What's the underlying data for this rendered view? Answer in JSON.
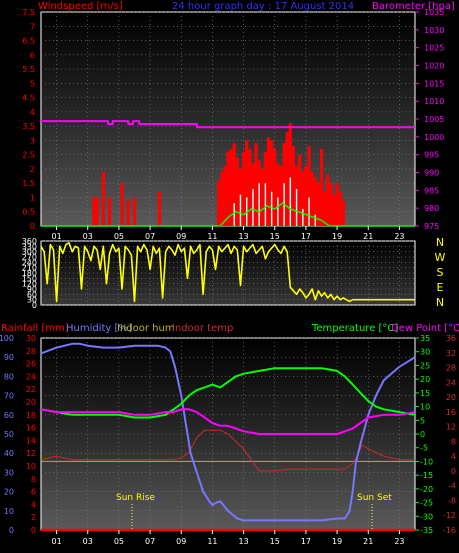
{
  "header": {
    "wind_title": "Windspeed [m/s]",
    "center_title": "24 hour graph day : 17 August 2014",
    "baro_title": "Barometer [hpa]"
  },
  "bottom_header": {
    "rain_title": "Rainfall [mm]",
    "humidity_title": "Humidity [%]",
    "indoor_hum_title": "Indoor hum",
    "indoor_temp_title": "Indoor temp",
    "temp_title": "Temperature [°C]",
    "dew_title": "Dew Point [°C]"
  },
  "annotations": {
    "sun_rise": "Sun Rise",
    "sun_set": "Sun Set"
  },
  "colors": {
    "wind": "#ff0000",
    "gust": "#ffffff",
    "avg": "#00ff00",
    "baro": "#ff00ff",
    "direction": "#ffff00",
    "rain": "#ff0000",
    "humidity": "#7777ff",
    "indoor_hum": "#b9b900",
    "indoor_temp": "#d12a2a",
    "temperature": "#00ff00",
    "dewpoint": "#ff00ff",
    "title_blue": "#3030ff",
    "title_red": "#ff0000",
    "title_magenta": "#ff00ff",
    "title_green": "#00ff00",
    "title_yellow": "#ffff00"
  },
  "chart_data": [
    {
      "type": "bar",
      "yaxis_left": {
        "ticks": [
          "0",
          "0.5",
          "1",
          "1.5",
          "2",
          "2.5",
          "3",
          "3.5",
          "4",
          "4.5",
          "5",
          "5.5",
          "6",
          "6.5",
          "7",
          "7.5"
        ],
        "ylim": [
          0,
          7.5
        ]
      },
      "yaxis_right": {
        "ticks": [
          "975",
          "980",
          "985",
          "990",
          "995",
          "1000",
          "1005",
          "1010",
          "1015",
          "1020",
          "1025",
          "1030",
          "1035"
        ],
        "ylim": [
          975,
          1035
        ]
      },
      "x_ticks": [
        "01",
        "03",
        "05",
        "07",
        "09",
        "11",
        "13",
        "15",
        "17",
        "19",
        "21",
        "23"
      ],
      "xlim": [
        0,
        24
      ],
      "grid": true,
      "series": [
        {
          "x": [
            3.4,
            3.6,
            4.0,
            4.4,
            5.2,
            5.6,
            6.0,
            7.6,
            11.4,
            11.6,
            11.8,
            12.0,
            12.2,
            12.4,
            12.6,
            12.8,
            13.0,
            13.2,
            13.4,
            13.6,
            13.8,
            14.0,
            14.2,
            14.4,
            14.6,
            14.8,
            15.0,
            15.2,
            15.4,
            15.6,
            15.8,
            16.0,
            16.2,
            16.4,
            16.6,
            16.8,
            17.0,
            17.2,
            17.4,
            17.6,
            17.8,
            18.0,
            18.2,
            18.4,
            18.6,
            18.8,
            19.0,
            19.2,
            19.4
          ],
          "values": [
            1.0,
            1.0,
            1.9,
            1.0,
            1.5,
            0.9,
            1.0,
            1.2,
            1.6,
            1.9,
            2.1,
            2.6,
            2.7,
            2.9,
            2.4,
            2.0,
            2.6,
            3.0,
            2.7,
            2.2,
            2.9,
            2.3,
            2.0,
            2.6,
            3.1,
            3.0,
            2.7,
            2.2,
            2.1,
            2.9,
            3.3,
            3.6,
            2.8,
            2.1,
            2.5,
            1.9,
            2.1,
            2.8,
            1.9,
            1.7,
            1.5,
            2.7,
            1.2,
            1.8,
            1.5,
            1.1,
            1.5,
            1.2,
            0.9
          ]
        },
        {
          "x": [
            12.4,
            12.8,
            13.2,
            13.6,
            14.0,
            14.4,
            14.8,
            15.2,
            15.6,
            16.0,
            16.4,
            16.8,
            17.2,
            17.6
          ],
          "values": [
            0.8,
            1.1,
            1.0,
            1.3,
            1.5,
            1.5,
            1.2,
            1.0,
            1.5,
            1.7,
            1.3,
            0.6,
            1.0,
            0.4
          ]
        },
        {
          "x": [
            0,
            11.5,
            12.0,
            12.5,
            13.0,
            13.5,
            14.0,
            14.5,
            15.0,
            15.5,
            16.0,
            16.5,
            17.0,
            17.5,
            18.0,
            18.5,
            24
          ],
          "values": [
            0,
            0,
            0.3,
            0.5,
            0.4,
            0.6,
            0.5,
            0.7,
            0.6,
            0.8,
            0.6,
            0.5,
            0.4,
            0.3,
            0.2,
            0,
            0
          ]
        },
        {
          "x": [
            0,
            4.3,
            4.3,
            4.6,
            4.6,
            5.6,
            5.6,
            5.9,
            5.9,
            6.3,
            6.3,
            10.0,
            10.0,
            24
          ],
          "values": [
            1004.4,
            1004.4,
            1003.6,
            1003.6,
            1004.4,
            1004.4,
            1003.6,
            1003.6,
            1004.4,
            1004.4,
            1003.6,
            1003.6,
            1002.7,
            1002.7
          ]
        }
      ]
    },
    {
      "type": "line",
      "yaxis_left": {
        "ticks": [
          "0",
          "30",
          "60",
          "90",
          "120",
          "150",
          "180",
          "210",
          "240",
          "270",
          "300",
          "330",
          "360"
        ],
        "ylim": [
          0,
          360
        ]
      },
      "yaxis_right": {
        "ticks": [
          "N",
          "W",
          "S",
          "E",
          "N"
        ]
      },
      "xlim": [
        0,
        24
      ],
      "grid": true,
      "series": [
        {
          "x": [
            0.0,
            0.2,
            0.4,
            0.6,
            0.8,
            1.0,
            1.2,
            1.4,
            1.6,
            1.8,
            2.0,
            2.2,
            2.4,
            2.6,
            2.8,
            3.0,
            3.2,
            3.4,
            3.6,
            3.8,
            4.0,
            4.2,
            4.4,
            4.6,
            4.8,
            5.0,
            5.2,
            5.4,
            5.6,
            5.8,
            6.0,
            6.2,
            6.4,
            6.6,
            6.8,
            7.0,
            7.2,
            7.4,
            7.6,
            7.8,
            8.0,
            8.2,
            8.4,
            8.6,
            8.8,
            9.0,
            9.2,
            9.4,
            9.6,
            9.8,
            10.0,
            10.2,
            10.4,
            10.6,
            10.8,
            11.0,
            11.2,
            11.4,
            11.6,
            11.8,
            12.0,
            12.2,
            12.4,
            12.6,
            12.8,
            13.0,
            13.2,
            13.4,
            13.6,
            13.8,
            14.0,
            14.2,
            14.4,
            14.6,
            14.8,
            15.0,
            15.2,
            15.4,
            15.6,
            15.8,
            16.0,
            16.2,
            16.4,
            16.6,
            16.8,
            17.0,
            17.2,
            17.4,
            17.6,
            17.8,
            18.0,
            18.2,
            18.4,
            18.6,
            18.8,
            19.0,
            19.2,
            19.4,
            19.6,
            19.8,
            20.0,
            20.2,
            20.4,
            20.6,
            20.8,
            21.0,
            21.2,
            21.4,
            21.6,
            21.8,
            22.0,
            22.2,
            22.4,
            22.6,
            22.8,
            23.0,
            23.2,
            23.4,
            23.6,
            23.8,
            24.0
          ],
          "values": [
            330,
            300,
            120,
            340,
            310,
            20,
            330,
            290,
            340,
            350,
            300,
            330,
            320,
            90,
            330,
            300,
            250,
            330,
            310,
            200,
            330,
            120,
            290,
            340,
            300,
            320,
            90,
            330,
            310,
            280,
            20,
            330,
            300,
            340,
            310,
            200,
            330,
            290,
            320,
            40,
            300,
            330,
            310,
            280,
            340,
            300,
            320,
            150,
            330,
            290,
            310,
            340,
            60,
            300,
            330,
            310,
            200,
            330,
            300,
            320,
            340,
            290,
            330,
            310,
            110,
            330,
            300,
            320,
            340,
            290,
            310,
            330,
            260,
            300,
            320,
            340,
            310,
            290,
            330,
            300,
            100,
            80,
            60,
            90,
            70,
            40,
            60,
            90,
            30,
            80,
            50,
            70,
            40,
            60,
            30,
            50,
            30,
            40,
            30,
            20,
            30,
            30,
            30,
            30,
            30,
            30,
            30,
            30,
            30,
            30,
            30,
            30,
            30,
            30,
            30,
            30,
            30,
            30,
            30,
            30,
            30
          ]
        }
      ]
    },
    {
      "type": "line",
      "yaxis_left_humidity": {
        "ticks": [
          "0",
          "10",
          "20",
          "30",
          "40",
          "50",
          "60",
          "70",
          "80",
          "90",
          "100"
        ],
        "ylim": [
          0,
          100
        ]
      },
      "yaxis_left_rain": {
        "ticks": [
          "0",
          "2",
          "4",
          "6",
          "8",
          "10",
          "12",
          "14",
          "16",
          "18",
          "20",
          "22",
          "24",
          "26",
          "28",
          "30"
        ],
        "ylim": [
          0,
          30
        ]
      },
      "yaxis_right_temp": {
        "ticks": [
          "-35",
          "-30",
          "-25",
          "-20",
          "-15",
          "-10",
          "-5",
          "0",
          "5",
          "10",
          "15",
          "20",
          "25",
          "30",
          "35"
        ],
        "ylim": [
          -35,
          35
        ]
      },
      "yaxis_right_indoor": {
        "ticks": [
          "-16",
          "-12",
          "-8",
          "-4",
          "0",
          "4",
          "8",
          "12",
          "16",
          "20",
          "24",
          "28",
          "32",
          "36"
        ],
        "ylim": [
          -16,
          36
        ]
      },
      "x_ticks": [
        "01",
        "03",
        "05",
        "07",
        "09",
        "11",
        "13",
        "15",
        "17",
        "19",
        "21",
        "23"
      ],
      "xlim": [
        0,
        24
      ],
      "grid": true,
      "series": [
        {
          "x": [
            0,
            1,
            2,
            2.5,
            3,
            4,
            5,
            6,
            7,
            7.5,
            8.0,
            8.3,
            8.6,
            9.0,
            9.3,
            9.6,
            10.0,
            10.4,
            10.8,
            11.0,
            11.2,
            11.5,
            11.8,
            12.0,
            12.3,
            12.6,
            13.0,
            13.5,
            14,
            15,
            16,
            17,
            18,
            19,
            19.5,
            19.8,
            20.0,
            20.2,
            20.5,
            21.0,
            21.5,
            22,
            23,
            24
          ],
          "values": [
            92,
            95,
            97,
            97,
            96,
            95,
            95,
            96,
            96,
            96,
            95,
            93,
            85,
            70,
            55,
            40,
            30,
            20,
            15,
            13,
            14,
            15,
            12,
            10,
            8,
            6,
            5,
            5,
            5,
            5,
            5,
            5,
            5,
            6,
            6,
            10,
            20,
            35,
            45,
            60,
            70,
            78,
            85,
            90
          ]
        },
        {
          "x": [
            0,
            1,
            2,
            3,
            4,
            5,
            6,
            7,
            7.5,
            8,
            8.5,
            9,
            9.5,
            10,
            10.5,
            11,
            11.5,
            12,
            12.5,
            13,
            14,
            15,
            16,
            17,
            18,
            19,
            19.5,
            20,
            20.3,
            20.6,
            21,
            21.5,
            22,
            23,
            24
          ],
          "values": [
            3,
            4,
            3,
            3,
            3,
            3,
            3,
            3,
            3,
            3,
            3,
            3.5,
            5,
            9,
            11,
            11,
            11,
            10,
            8,
            6,
            0,
            0,
            0.5,
            0.5,
            0.5,
            0.5,
            0.5,
            2,
            4,
            7,
            6,
            5,
            4,
            3,
            3
          ]
        },
        {
          "x": [
            0,
            4,
            8,
            9,
            10,
            11,
            12,
            13,
            14,
            15,
            16,
            17,
            18,
            19,
            20,
            21,
            22,
            23,
            24
          ],
          "values": [
            -10,
            -10,
            -10,
            -10,
            -10,
            -10,
            -10,
            -10,
            -10,
            -10,
            -10,
            -10,
            -10,
            -10,
            -10,
            -10,
            -10,
            -10,
            -10
          ]
        },
        {
          "x": [
            0,
            4,
            8,
            9,
            10,
            11,
            12,
            13,
            14,
            15,
            16,
            17,
            18,
            19,
            20,
            21,
            22,
            23,
            24
          ],
          "values": [
            -16,
            -16,
            -16,
            -16,
            -16,
            -16,
            -16,
            -16,
            -16,
            -16,
            -16,
            -16,
            -16,
            -16,
            -16,
            -16,
            -16,
            -16,
            -16
          ]
        },
        {
          "x": [
            0,
            1,
            2,
            3,
            4,
            5,
            6,
            7,
            8,
            8.5,
            9,
            9.5,
            10,
            10.5,
            11,
            11.5,
            12,
            12.5,
            13,
            14,
            15,
            16,
            17,
            18,
            19,
            19.5,
            20,
            20.5,
            21,
            21.5,
            22,
            23,
            24
          ],
          "values": [
            9,
            8,
            7,
            7,
            7,
            7,
            6,
            6,
            7,
            9,
            11,
            14,
            16,
            17,
            18,
            17,
            19,
            21,
            22,
            23,
            24,
            24,
            24,
            24,
            23,
            21,
            18,
            15,
            12,
            10,
            9,
            8,
            7
          ]
        },
        {
          "x": [
            0,
            1,
            2,
            3,
            4,
            5,
            6,
            7,
            8,
            8.5,
            9,
            9.5,
            10,
            10.5,
            11,
            11.5,
            12,
            12.5,
            13,
            14,
            15,
            16,
            17,
            18,
            19,
            19.5,
            20,
            20.5,
            21,
            22,
            23,
            24
          ],
          "values": [
            9,
            8,
            8,
            8,
            8,
            8,
            7,
            7,
            8,
            8,
            9,
            9,
            8,
            6,
            4,
            3,
            3,
            2,
            1,
            0,
            0,
            0,
            0,
            0,
            0,
            1,
            2,
            4,
            6,
            7,
            7,
            8
          ]
        }
      ]
    }
  ]
}
